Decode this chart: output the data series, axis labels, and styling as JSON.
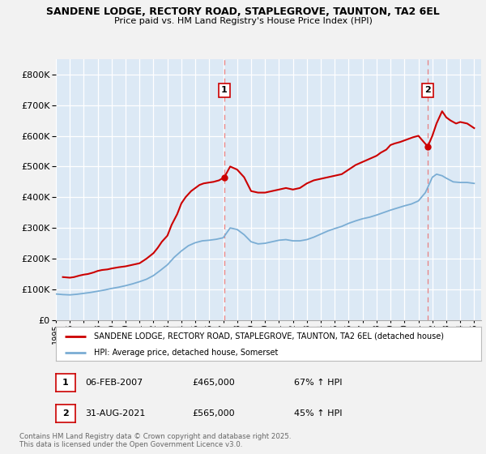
{
  "title1": "SANDENE LODGE, RECTORY ROAD, STAPLEGROVE, TAUNTON, TA2 6EL",
  "title2": "Price paid vs. HM Land Registry's House Price Index (HPI)",
  "bg_color": "#f2f2f2",
  "plot_bg_color": "#dce9f5",
  "red_color": "#cc0000",
  "blue_color": "#7aadd4",
  "dashed_color": "#e88080",
  "ylim": [
    0,
    850000
  ],
  "yticks": [
    0,
    100000,
    200000,
    300000,
    400000,
    500000,
    600000,
    700000,
    800000
  ],
  "legend_label_red": "SANDENE LODGE, RECTORY ROAD, STAPLEGROVE, TAUNTON, TA2 6EL (detached house)",
  "legend_label_blue": "HPI: Average price, detached house, Somerset",
  "marker1_year": 2007.08,
  "marker2_year": 2021.67,
  "marker1_val": 465000,
  "marker2_val": 565000,
  "footnote": "Contains HM Land Registry data © Crown copyright and database right 2025.\nThis data is licensed under the Open Government Licence v3.0.",
  "red_data_years": [
    1995.5,
    1996.0,
    1996.3,
    1996.7,
    1997.0,
    1997.3,
    1997.7,
    1998.0,
    1998.3,
    1998.7,
    1999.0,
    1999.5,
    2000.0,
    2000.5,
    2001.0,
    2001.5,
    2002.0,
    2002.3,
    2002.6,
    2003.0,
    2003.3,
    2003.7,
    2004.0,
    2004.3,
    2004.7,
    2005.0,
    2005.3,
    2005.6,
    2006.0,
    2006.3,
    2006.7,
    2007.08,
    2007.5,
    2008.0,
    2008.5,
    2009.0,
    2009.5,
    2010.0,
    2010.5,
    2011.0,
    2011.5,
    2012.0,
    2012.5,
    2013.0,
    2013.5,
    2014.0,
    2014.5,
    2015.0,
    2015.5,
    2016.0,
    2016.5,
    2017.0,
    2017.5,
    2018.0,
    2018.3,
    2018.7,
    2019.0,
    2019.3,
    2019.7,
    2020.0,
    2020.3,
    2020.6,
    2021.0,
    2021.67,
    2022.0,
    2022.3,
    2022.7,
    2023.0,
    2023.3,
    2023.7,
    2024.0,
    2024.5,
    2025.0
  ],
  "red_data_vals": [
    140000,
    138000,
    140000,
    145000,
    148000,
    150000,
    155000,
    160000,
    163000,
    165000,
    168000,
    172000,
    175000,
    180000,
    185000,
    200000,
    218000,
    235000,
    255000,
    275000,
    310000,
    345000,
    380000,
    400000,
    420000,
    430000,
    440000,
    445000,
    448000,
    450000,
    455000,
    465000,
    500000,
    490000,
    465000,
    420000,
    415000,
    415000,
    420000,
    425000,
    430000,
    425000,
    430000,
    445000,
    455000,
    460000,
    465000,
    470000,
    475000,
    490000,
    505000,
    515000,
    525000,
    535000,
    545000,
    555000,
    570000,
    575000,
    580000,
    585000,
    590000,
    595000,
    600000,
    565000,
    600000,
    640000,
    680000,
    660000,
    650000,
    640000,
    645000,
    640000,
    625000
  ],
  "blue_data_years": [
    1995.0,
    1995.5,
    1996.0,
    1996.5,
    1997.0,
    1997.5,
    1998.0,
    1998.5,
    1999.0,
    1999.5,
    2000.0,
    2000.5,
    2001.0,
    2001.5,
    2002.0,
    2002.5,
    2003.0,
    2003.5,
    2004.0,
    2004.5,
    2005.0,
    2005.5,
    2006.0,
    2006.5,
    2007.0,
    2007.5,
    2008.0,
    2008.5,
    2009.0,
    2009.5,
    2010.0,
    2010.5,
    2011.0,
    2011.5,
    2012.0,
    2012.5,
    2013.0,
    2013.5,
    2014.0,
    2014.5,
    2015.0,
    2015.5,
    2016.0,
    2016.5,
    2017.0,
    2017.5,
    2018.0,
    2018.5,
    2019.0,
    2019.5,
    2020.0,
    2020.5,
    2021.0,
    2021.5,
    2022.0,
    2022.3,
    2022.7,
    2023.0,
    2023.5,
    2024.0,
    2024.5,
    2025.0
  ],
  "blue_data_vals": [
    85000,
    83000,
    82000,
    84000,
    87000,
    90000,
    94000,
    98000,
    103000,
    107000,
    112000,
    118000,
    125000,
    133000,
    145000,
    162000,
    180000,
    205000,
    225000,
    242000,
    252000,
    258000,
    260000,
    263000,
    268000,
    300000,
    295000,
    278000,
    255000,
    248000,
    250000,
    255000,
    260000,
    262000,
    258000,
    258000,
    262000,
    270000,
    280000,
    290000,
    298000,
    305000,
    315000,
    323000,
    330000,
    335000,
    342000,
    350000,
    358000,
    365000,
    372000,
    378000,
    388000,
    415000,
    465000,
    475000,
    470000,
    462000,
    450000,
    448000,
    448000,
    445000
  ]
}
